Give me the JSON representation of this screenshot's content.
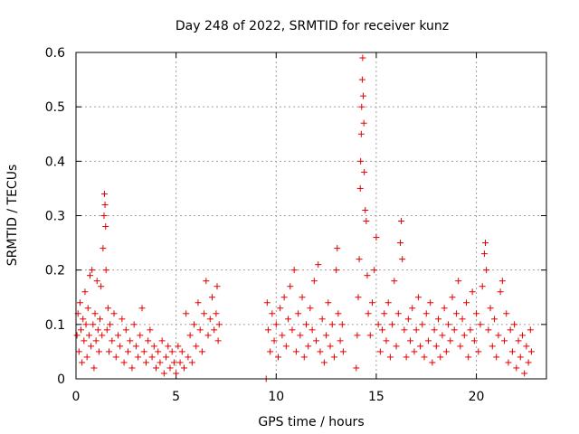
{
  "chart_data": {
    "type": "scatter",
    "title": "Day 248 of 2022, SRMTID for receiver kunz",
    "xlabel": "GPS time / hours",
    "ylabel": "SRMTID / TECUs",
    "xlim": [
      0,
      23.5
    ],
    "ylim": [
      0,
      0.6
    ],
    "xticks": [
      0,
      5,
      10,
      15,
      20
    ],
    "yticks": [
      0,
      0.1,
      0.2,
      0.3,
      0.4,
      0.5,
      0.6
    ],
    "ytick_labels": [
      "0",
      "0.1",
      "0.2",
      "0.3",
      "0.4",
      "0.5",
      "0.6"
    ],
    "grid": true,
    "marker": "+",
    "series": [
      {
        "name": "SRMTID",
        "color": "#e00000",
        "points": [
          [
            0.05,
            0.08
          ],
          [
            0.1,
            0.12
          ],
          [
            0.15,
            0.05
          ],
          [
            0.2,
            0.14
          ],
          [
            0.25,
            0.09
          ],
          [
            0.3,
            0.03
          ],
          [
            0.35,
            0.11
          ],
          [
            0.4,
            0.07
          ],
          [
            0.45,
            0.16
          ],
          [
            0.5,
            0.1
          ],
          [
            0.55,
            0.04
          ],
          [
            0.6,
            0.13
          ],
          [
            0.65,
            0.08
          ],
          [
            0.7,
            0.19
          ],
          [
            0.75,
            0.06
          ],
          [
            0.8,
            0.2
          ],
          [
            0.85,
            0.1
          ],
          [
            0.9,
            0.02
          ],
          [
            0.95,
            0.12
          ],
          [
            1.0,
            0.07
          ],
          [
            1.05,
            0.18
          ],
          [
            1.1,
            0.09
          ],
          [
            1.15,
            0.05
          ],
          [
            1.2,
            0.11
          ],
          [
            1.25,
            0.17
          ],
          [
            1.3,
            0.08
          ],
          [
            1.35,
            0.24
          ],
          [
            1.4,
            0.3
          ],
          [
            1.42,
            0.34
          ],
          [
            1.45,
            0.32
          ],
          [
            1.48,
            0.28
          ],
          [
            1.5,
            0.2
          ],
          [
            1.55,
            0.09
          ],
          [
            1.6,
            0.13
          ],
          [
            1.65,
            0.05
          ],
          [
            1.7,
            0.1
          ],
          [
            1.8,
            0.07
          ],
          [
            1.9,
            0.12
          ],
          [
            2.0,
            0.04
          ],
          [
            2.1,
            0.08
          ],
          [
            2.2,
            0.06
          ],
          [
            2.3,
            0.11
          ],
          [
            2.4,
            0.03
          ],
          [
            2.5,
            0.09
          ],
          [
            2.6,
            0.05
          ],
          [
            2.7,
            0.07
          ],
          [
            2.8,
            0.02
          ],
          [
            2.9,
            0.1
          ],
          [
            3.0,
            0.06
          ],
          [
            3.1,
            0.04
          ],
          [
            3.2,
            0.08
          ],
          [
            3.3,
            0.13
          ],
          [
            3.4,
            0.05
          ],
          [
            3.5,
            0.03
          ],
          [
            3.6,
            0.07
          ],
          [
            3.7,
            0.09
          ],
          [
            3.8,
            0.04
          ],
          [
            3.9,
            0.06
          ],
          [
            4.0,
            0.02
          ],
          [
            4.1,
            0.05
          ],
          [
            4.2,
            0.03
          ],
          [
            4.3,
            0.07
          ],
          [
            4.4,
            0.01
          ],
          [
            4.5,
            0.04
          ],
          [
            4.6,
            0.06
          ],
          [
            4.7,
            0.02
          ],
          [
            4.8,
            0.05
          ],
          [
            4.9,
            0.03
          ],
          [
            5.0,
            0.01
          ],
          [
            5.1,
            0.06
          ],
          [
            5.2,
            0.03
          ],
          [
            5.3,
            0.05
          ],
          [
            5.4,
            0.02
          ],
          [
            5.5,
            0.12
          ],
          [
            5.6,
            0.04
          ],
          [
            5.7,
            0.08
          ],
          [
            5.8,
            0.03
          ],
          [
            5.9,
            0.1
          ],
          [
            6.0,
            0.06
          ],
          [
            6.1,
            0.14
          ],
          [
            6.2,
            0.09
          ],
          [
            6.3,
            0.05
          ],
          [
            6.4,
            0.12
          ],
          [
            6.5,
            0.18
          ],
          [
            6.6,
            0.08
          ],
          [
            6.7,
            0.11
          ],
          [
            6.8,
            0.15
          ],
          [
            6.9,
            0.09
          ],
          [
            7.0,
            0.12
          ],
          [
            7.05,
            0.17
          ],
          [
            7.1,
            0.07
          ],
          [
            7.15,
            0.1
          ],
          [
            9.5,
            0.0
          ],
          [
            9.55,
            0.14
          ],
          [
            9.6,
            0.09
          ],
          [
            9.7,
            0.05
          ],
          [
            9.8,
            0.12
          ],
          [
            9.9,
            0.07
          ],
          [
            10.0,
            0.1
          ],
          [
            10.1,
            0.04
          ],
          [
            10.2,
            0.13
          ],
          [
            10.3,
            0.08
          ],
          [
            10.4,
            0.15
          ],
          [
            10.5,
            0.06
          ],
          [
            10.6,
            0.11
          ],
          [
            10.7,
            0.17
          ],
          [
            10.8,
            0.09
          ],
          [
            10.9,
            0.2
          ],
          [
            11.0,
            0.05
          ],
          [
            11.1,
            0.12
          ],
          [
            11.2,
            0.08
          ],
          [
            11.3,
            0.15
          ],
          [
            11.4,
            0.04
          ],
          [
            11.5,
            0.1
          ],
          [
            11.6,
            0.06
          ],
          [
            11.7,
            0.13
          ],
          [
            11.8,
            0.09
          ],
          [
            11.9,
            0.18
          ],
          [
            12.0,
            0.07
          ],
          [
            12.1,
            0.21
          ],
          [
            12.2,
            0.05
          ],
          [
            12.3,
            0.11
          ],
          [
            12.4,
            0.03
          ],
          [
            12.5,
            0.08
          ],
          [
            12.6,
            0.14
          ],
          [
            12.7,
            0.06
          ],
          [
            12.8,
            0.1
          ],
          [
            12.9,
            0.04
          ],
          [
            13.0,
            0.2
          ],
          [
            13.05,
            0.24
          ],
          [
            13.1,
            0.12
          ],
          [
            13.2,
            0.07
          ],
          [
            13.3,
            0.1
          ],
          [
            13.35,
            0.05
          ],
          [
            14.0,
            0.02
          ],
          [
            14.05,
            0.08
          ],
          [
            14.1,
            0.15
          ],
          [
            14.15,
            0.22
          ],
          [
            14.2,
            0.35
          ],
          [
            14.22,
            0.4
          ],
          [
            14.25,
            0.45
          ],
          [
            14.27,
            0.5
          ],
          [
            14.3,
            0.55
          ],
          [
            14.32,
            0.59
          ],
          [
            14.35,
            0.52
          ],
          [
            14.38,
            0.47
          ],
          [
            14.4,
            0.38
          ],
          [
            14.45,
            0.31
          ],
          [
            14.5,
            0.29
          ],
          [
            14.55,
            0.19
          ],
          [
            14.6,
            0.12
          ],
          [
            14.7,
            0.08
          ],
          [
            14.8,
            0.14
          ],
          [
            14.9,
            0.2
          ],
          [
            15.0,
            0.26
          ],
          [
            15.1,
            0.1
          ],
          [
            15.2,
            0.05
          ],
          [
            15.3,
            0.09
          ],
          [
            15.4,
            0.12
          ],
          [
            15.5,
            0.07
          ],
          [
            15.6,
            0.14
          ],
          [
            15.7,
            0.04
          ],
          [
            15.8,
            0.1
          ],
          [
            15.9,
            0.18
          ],
          [
            16.0,
            0.06
          ],
          [
            16.1,
            0.12
          ],
          [
            16.2,
            0.25
          ],
          [
            16.25,
            0.29
          ],
          [
            16.3,
            0.22
          ],
          [
            16.4,
            0.09
          ],
          [
            16.5,
            0.04
          ],
          [
            16.6,
            0.11
          ],
          [
            16.7,
            0.07
          ],
          [
            16.8,
            0.13
          ],
          [
            16.9,
            0.05
          ],
          [
            17.0,
            0.09
          ],
          [
            17.1,
            0.15
          ],
          [
            17.2,
            0.06
          ],
          [
            17.3,
            0.1
          ],
          [
            17.4,
            0.04
          ],
          [
            17.5,
            0.12
          ],
          [
            17.6,
            0.07
          ],
          [
            17.7,
            0.14
          ],
          [
            17.8,
            0.03
          ],
          [
            17.9,
            0.09
          ],
          [
            18.0,
            0.06
          ],
          [
            18.1,
            0.11
          ],
          [
            18.2,
            0.04
          ],
          [
            18.3,
            0.08
          ],
          [
            18.4,
            0.13
          ],
          [
            18.5,
            0.05
          ],
          [
            18.6,
            0.1
          ],
          [
            18.7,
            0.07
          ],
          [
            18.8,
            0.15
          ],
          [
            18.9,
            0.09
          ],
          [
            19.0,
            0.12
          ],
          [
            19.1,
            0.18
          ],
          [
            19.2,
            0.06
          ],
          [
            19.3,
            0.11
          ],
          [
            19.4,
            0.08
          ],
          [
            19.5,
            0.14
          ],
          [
            19.6,
            0.04
          ],
          [
            19.7,
            0.09
          ],
          [
            19.8,
            0.16
          ],
          [
            19.9,
            0.07
          ],
          [
            20.0,
            0.12
          ],
          [
            20.1,
            0.05
          ],
          [
            20.2,
            0.1
          ],
          [
            20.3,
            0.17
          ],
          [
            20.4,
            0.23
          ],
          [
            20.45,
            0.25
          ],
          [
            20.5,
            0.2
          ],
          [
            20.6,
            0.09
          ],
          [
            20.7,
            0.13
          ],
          [
            20.8,
            0.06
          ],
          [
            20.9,
            0.11
          ],
          [
            21.0,
            0.04
          ],
          [
            21.1,
            0.08
          ],
          [
            21.2,
            0.16
          ],
          [
            21.3,
            0.18
          ],
          [
            21.4,
            0.07
          ],
          [
            21.5,
            0.12
          ],
          [
            21.6,
            0.03
          ],
          [
            21.7,
            0.09
          ],
          [
            21.8,
            0.05
          ],
          [
            21.9,
            0.1
          ],
          [
            22.0,
            0.02
          ],
          [
            22.1,
            0.07
          ],
          [
            22.2,
            0.04
          ],
          [
            22.3,
            0.08
          ],
          [
            22.4,
            0.01
          ],
          [
            22.5,
            0.06
          ],
          [
            22.6,
            0.03
          ],
          [
            22.7,
            0.09
          ],
          [
            22.75,
            0.05
          ]
        ]
      }
    ]
  }
}
